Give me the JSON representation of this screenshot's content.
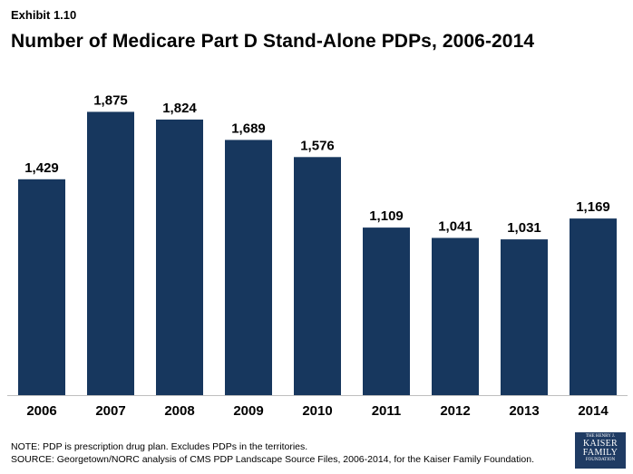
{
  "header": {
    "exhibit": "Exhibit 1.10",
    "title": "Number of Medicare Part D Stand-Alone PDPs, 2006-2014"
  },
  "chart_data": {
    "type": "bar",
    "title": "Number of Medicare Part D Stand-Alone PDPs, 2006-2014",
    "xlabel": "",
    "ylabel": "",
    "categories": [
      "2006",
      "2007",
      "2008",
      "2009",
      "2010",
      "2011",
      "2012",
      "2013",
      "2014"
    ],
    "values": [
      1429,
      1875,
      1824,
      1689,
      1576,
      1109,
      1041,
      1031,
      1169
    ],
    "value_labels": [
      "1,429",
      "1,875",
      "1,824",
      "1,689",
      "1,576",
      "1,109",
      "1,041",
      "1,031",
      "1,169"
    ],
    "ylim": [
      0,
      2000
    ],
    "grid": false,
    "legend": "none",
    "bar_color": "#17375e"
  },
  "footer": {
    "note": "NOTE: PDP is prescription drug plan. Excludes PDPs in the territories.",
    "source": "SOURCE: Georgetown/NORC analysis of CMS PDP Landscape Source Files, 2006-2014, for the Kaiser Family Foundation."
  },
  "logo": {
    "line1": "THE HENRY J.",
    "line2": "KAISER",
    "line3": "FAMILY",
    "line4": "FOUNDATION"
  }
}
